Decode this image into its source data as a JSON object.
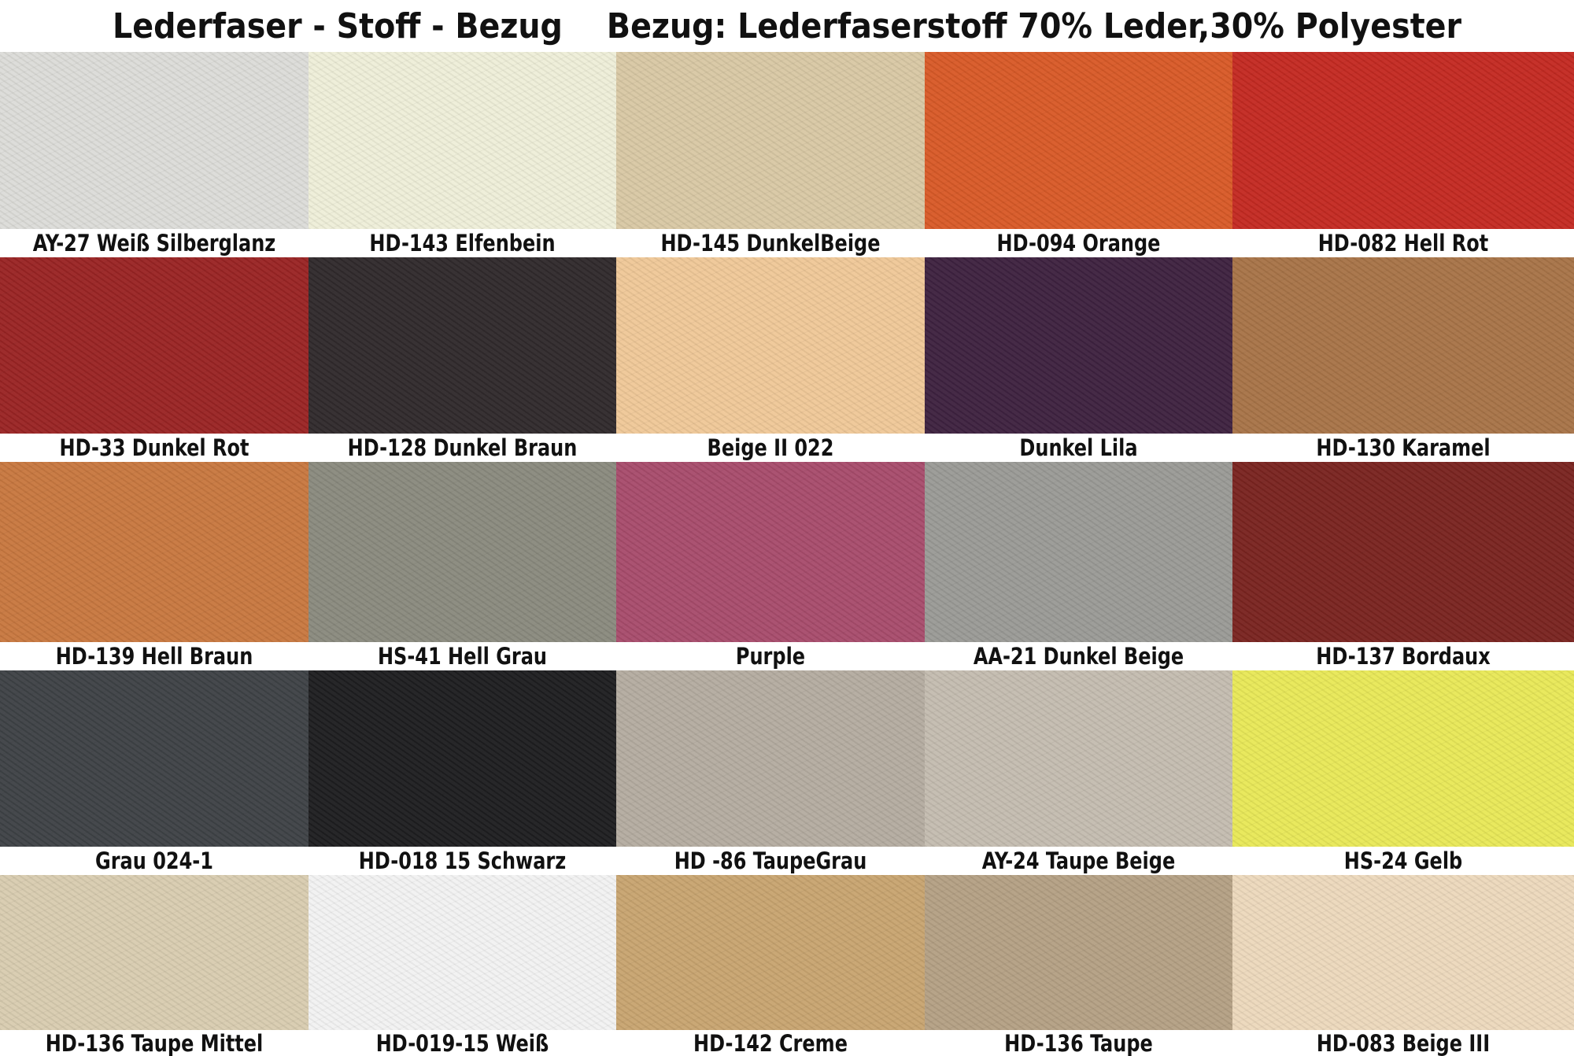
{
  "title": {
    "left": "Lederfaser  - Stoff - Bezug",
    "right": "Bezug: Lederfaserstoff 70% Leder,30% Polyester"
  },
  "swatches": [
    {
      "label": "AY-27 Weiß Silberglanz",
      "color": "#dcdcd8"
    },
    {
      "label": "HD-143 Elfenbein",
      "color": "#eeeed8"
    },
    {
      "label": "HD-145 DunkelBeige",
      "color": "#d8c8a4"
    },
    {
      "label": "HD-094 Orange",
      "color": "#d85a28"
    },
    {
      "label": "HD-082 Hell Rot",
      "color": "#c42a22"
    },
    {
      "label": "HD-33 Dunkel Rot",
      "color": "#9a2424"
    },
    {
      "label": "HD-128 Dunkel Braun",
      "color": "#302a2c"
    },
    {
      "label": "Beige II 022",
      "color": "#efc898"
    },
    {
      "label": "Dunkel Lila",
      "color": "#3e2240"
    },
    {
      "label": "HD-130 Karamel",
      "color": "#a87448"
    },
    {
      "label": "HD-139 Hell Braun",
      "color": "#c87840"
    },
    {
      "label": "HS-41 Hell Grau",
      "color": "#8a8a7e"
    },
    {
      "label": "Purple",
      "color": "#a84c6c"
    },
    {
      "label": "AA-21 Dunkel Beige",
      "color": "#9a9a96"
    },
    {
      "label": "HD-137 Bordaux",
      "color": "#7a2420"
    },
    {
      "label": "Grau 024-1",
      "color": "#3e4246"
    },
    {
      "label": "HD-018 15 Schwarz",
      "color": "#1e1e20"
    },
    {
      "label": "HD -86 TaupeGrau",
      "color": "#b4aca0"
    },
    {
      "label": "AY-24 Taupe Beige",
      "color": "#c4bcb0"
    },
    {
      "label": "HS-24 Gelb",
      "color": "#e8e858"
    },
    {
      "label": "HD-136 Taupe Mittel",
      "color": "#d8ccb0"
    },
    {
      "label": "HD-019-15 Weiß",
      "color": "#f2f2f2"
    },
    {
      "label": "HD-142 Creme",
      "color": "#c8a470"
    },
    {
      "label": "HD-136 Taupe",
      "color": "#b4a084"
    },
    {
      "label": "HD-083 Beige III",
      "color": "#ecd8bc"
    }
  ]
}
